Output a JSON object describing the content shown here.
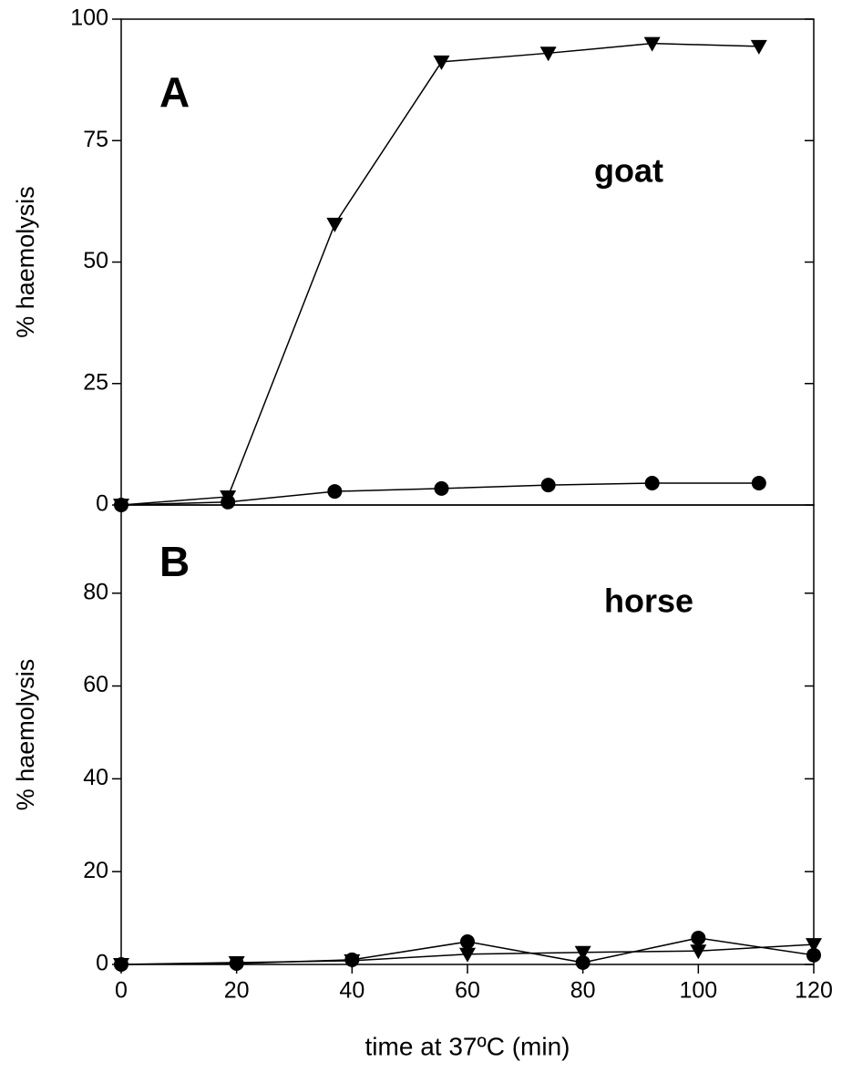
{
  "chart_data": [
    {
      "type": "line",
      "panel_label": "A",
      "annotation": "goat",
      "ylabel": "% haemolysis",
      "x": [
        0,
        18.5,
        37,
        55.5,
        74,
        92,
        110.5
      ],
      "series": [
        {
          "marker": "triangle",
          "color": "#000000",
          "values": [
            0,
            1.7,
            57.8,
            91.2,
            93,
            95,
            94.4
          ]
        },
        {
          "marker": "circle",
          "color": "#000000",
          "values": [
            0,
            0.6,
            2.8,
            3.4,
            4.1,
            4.5,
            4.5
          ]
        }
      ],
      "xlim": [
        0,
        120
      ],
      "ylim": [
        0,
        100
      ],
      "yticks": [
        0,
        25,
        50,
        75,
        100
      ]
    },
    {
      "type": "line",
      "panel_label": "B",
      "annotation": "horse",
      "ylabel": "% haemolysis",
      "xlabel": "time at 37ºC (min)",
      "x": [
        0,
        20,
        40,
        60,
        80,
        100,
        120
      ],
      "series": [
        {
          "marker": "triangle",
          "color": "#000000",
          "values": [
            0,
            0.4,
            0.8,
            2.2,
            2.6,
            2.9,
            4.3
          ]
        },
        {
          "marker": "circle",
          "color": "#000000",
          "values": [
            0,
            0.2,
            1,
            4.9,
            0.4,
            5.7,
            2
          ]
        }
      ],
      "xlim": [
        0,
        120
      ],
      "xticks": [
        0,
        20,
        40,
        60,
        80,
        100,
        120
      ],
      "ylim": [
        0,
        99
      ],
      "yticks": [
        0,
        20,
        40,
        60,
        80
      ]
    }
  ]
}
